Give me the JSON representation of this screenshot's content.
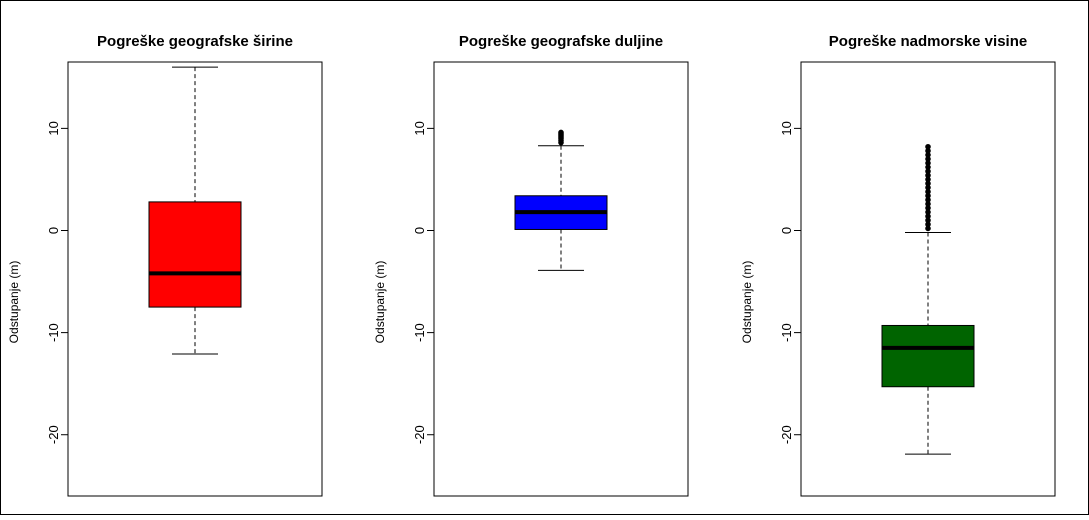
{
  "chart_data": [
    {
      "type": "boxplot",
      "title": "Pogreške geografske širine",
      "ylabel": "Odstupanje (m)",
      "ylim": [
        -26,
        16.5
      ],
      "yticks": [
        10,
        0,
        -10,
        -20
      ],
      "yticklabels": [
        "10",
        "0",
        "-10",
        "-20"
      ],
      "fill": "#ff0000",
      "box": {
        "whisker_low": -12.1,
        "q1": -7.5,
        "median": -4.2,
        "q3": 2.8,
        "whisker_high": 16.0
      },
      "outliers": []
    },
    {
      "type": "boxplot",
      "title": "Pogreške geografske duljine",
      "ylabel": "Odstupanje (m)",
      "ylim": [
        -26,
        16.5
      ],
      "yticks": [
        10,
        0,
        -10,
        -20
      ],
      "yticklabels": [
        "10",
        "0",
        "-10",
        "-20"
      ],
      "fill": "#0000ff",
      "box": {
        "whisker_low": -3.9,
        "q1": 0.1,
        "median": 1.8,
        "q3": 3.4,
        "whisker_high": 8.3
      },
      "outliers": [
        8.6,
        8.8,
        9.0,
        9.15,
        9.3,
        9.45,
        9.6
      ]
    },
    {
      "type": "boxplot",
      "title": "Pogreške nadmorske visine",
      "ylabel": "Odstupanje (m)",
      "ylim": [
        -26,
        16.5
      ],
      "yticks": [
        10,
        0,
        -10,
        -20
      ],
      "yticklabels": [
        "10",
        "0",
        "-10",
        "-20"
      ],
      "fill": "#006400",
      "box": {
        "whisker_low": -21.9,
        "q1": -15.3,
        "median": -11.5,
        "q3": -9.3,
        "whisker_high": -0.2
      },
      "outliers": [
        0.2,
        0.6,
        1.0,
        1.4,
        1.8,
        2.2,
        2.6,
        3.0,
        3.4,
        3.8,
        4.2,
        4.6,
        5.0,
        5.4,
        5.8,
        6.2,
        6.6,
        7.0,
        7.4,
        7.8,
        8.2
      ]
    }
  ]
}
